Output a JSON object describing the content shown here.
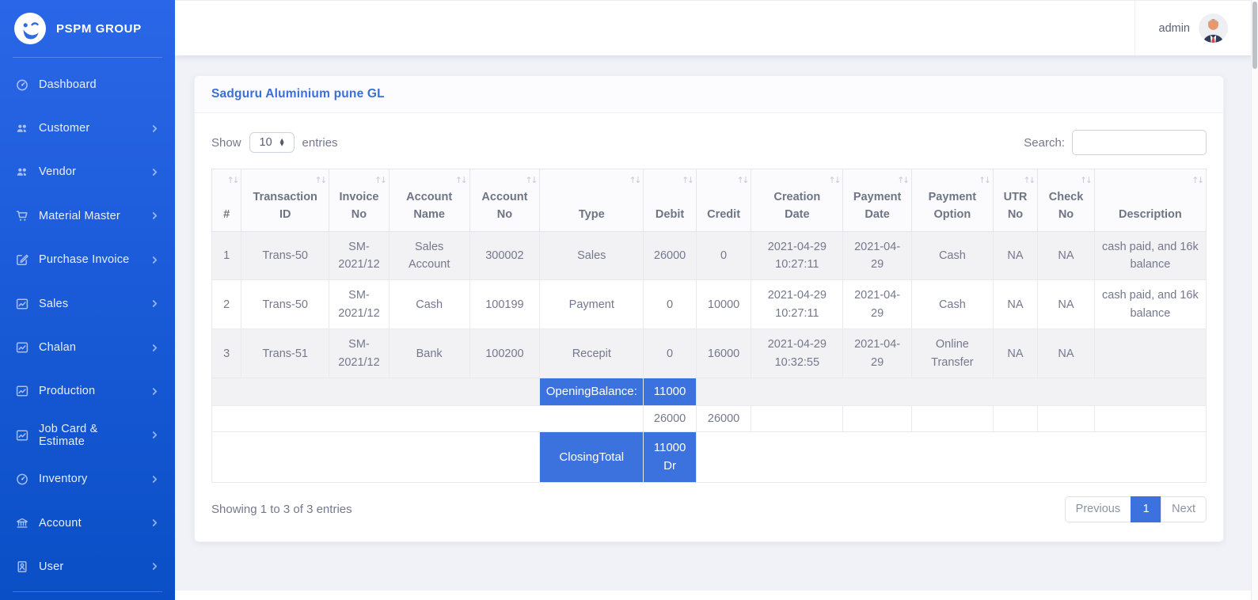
{
  "brand": {
    "name": "PSPM GROUP"
  },
  "sidebar": {
    "items": [
      {
        "label": "Dashboard",
        "icon": "gauge",
        "has_submenu": false
      },
      {
        "label": "Customer",
        "icon": "users",
        "has_submenu": true
      },
      {
        "label": "Vendor",
        "icon": "users",
        "has_submenu": true
      },
      {
        "label": "Material Master",
        "icon": "cart",
        "has_submenu": true
      },
      {
        "label": "Purchase Invoice",
        "icon": "edit",
        "has_submenu": true
      },
      {
        "label": "Sales",
        "icon": "chart",
        "has_submenu": true
      },
      {
        "label": "Chalan",
        "icon": "chart",
        "has_submenu": true
      },
      {
        "label": "Production",
        "icon": "chart",
        "has_submenu": true
      },
      {
        "label": "Job Card & Estimate",
        "icon": "chart",
        "has_submenu": true
      },
      {
        "label": "Inventory",
        "icon": "gauge",
        "has_submenu": true
      },
      {
        "label": "Account",
        "icon": "bank",
        "has_submenu": true
      },
      {
        "label": "User",
        "icon": "idcard",
        "has_submenu": true
      }
    ]
  },
  "topbar": {
    "user": "admin"
  },
  "icons": {
    "sort": "↑↓",
    "select_up": "▲",
    "select_down": "▼"
  },
  "page": {
    "card_title": "Sadguru Aluminium pune GL",
    "show_label": "Show",
    "page_length": "10",
    "entries_label": "entries",
    "search_label": "Search:",
    "search_value": "",
    "table": {
      "columns": [
        "#",
        "Transaction\nID",
        "Invoice\nNo",
        "Account\nName",
        "Account\nNo",
        "Type",
        "Debit",
        "Credit",
        "Creation\nDate",
        "Payment\nDate",
        "Payment\nOption",
        "UTR\nNo",
        "Check\nNo",
        "Description"
      ],
      "rows": [
        [
          "1",
          "Trans-50",
          "SM-2021/12",
          "Sales Account",
          "300002",
          "Sales",
          "26000",
          "0",
          "2021-04-29 10:27:11",
          "2021-04-29",
          "Cash",
          "NA",
          "NA",
          "cash paid, and 16k balance"
        ],
        [
          "2",
          "Trans-50",
          "SM-2021/12",
          "Cash",
          "100199",
          "Payment",
          "0",
          "10000",
          "2021-04-29 10:27:11",
          "2021-04-29",
          "Cash",
          "NA",
          "NA",
          "cash paid, and 16k balance"
        ],
        [
          "3",
          "Trans-51",
          "SM-2021/12",
          "Bank",
          "100200",
          "Recepit",
          "0",
          "16000",
          "2021-04-29 10:32:55",
          "2021-04-29",
          "Online Transfer",
          "NA",
          "NA",
          ""
        ]
      ],
      "summary": {
        "opening_label": "OpeningBalance:",
        "opening_value": "11000",
        "debit_total": "26000",
        "credit_total": "26000",
        "closing_label": "ClosingTotal",
        "closing_value": "11000 Dr"
      }
    },
    "info": "Showing 1 to 3 of 3 entries",
    "pagination": {
      "previous": "Previous",
      "current": "1",
      "next": "Next"
    }
  },
  "colors": {
    "accent": "#3b72dd",
    "sidebar_gradient_top": "#2a67e8",
    "sidebar_gradient_bottom": "#0a4fc6",
    "title_blue": "#3a6fd9",
    "stripe": "#f2f2f4"
  }
}
